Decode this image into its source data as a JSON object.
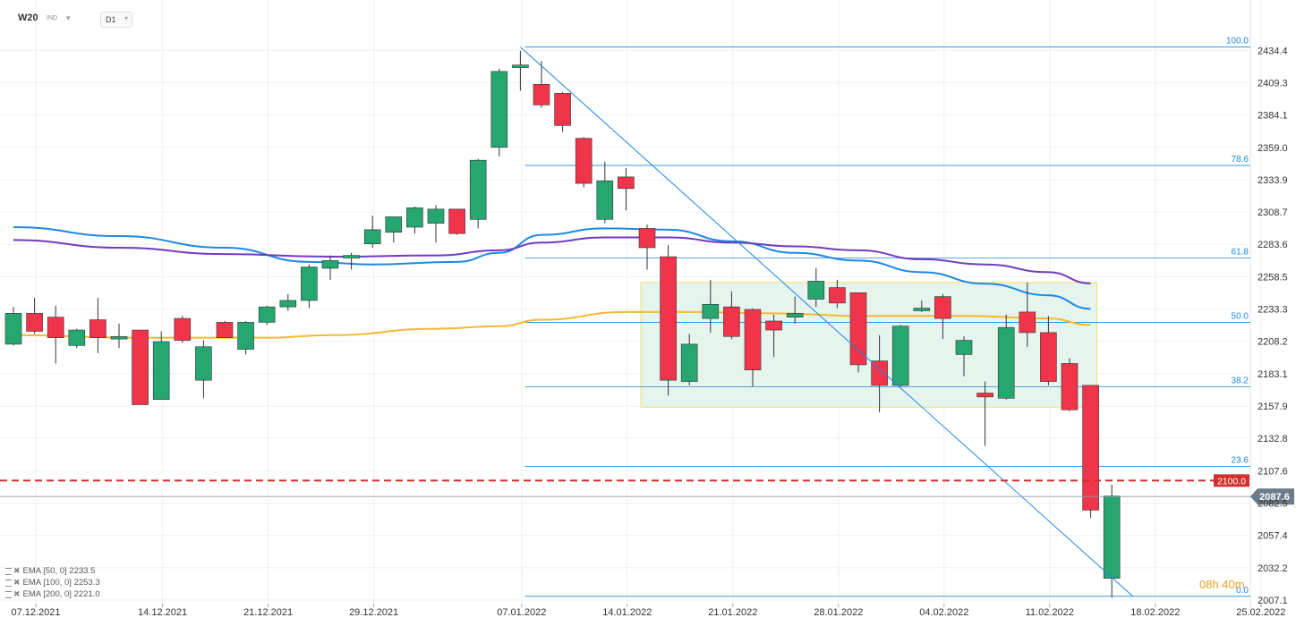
{
  "header": {
    "symbol": "W20",
    "indicator_toggle": "IND",
    "timeframe": "D1"
  },
  "legend": [
    "EMA [50,  0] 2233.5",
    "EMA [100,  0] 2253.3",
    "EMA [200,  0] 2221.0"
  ],
  "timer": "08h 40m",
  "colors": {
    "up": "#26a671",
    "down": "#f0344a",
    "ema50": "#1e88e5",
    "ema100": "#6f3cc0",
    "ema200": "#f5b930",
    "fib": "#1e88e5",
    "level": "#d32f2f",
    "zone_fill": "#e6f4ee",
    "zone_border": "#f0e060"
  },
  "chart_data": {
    "type": "candlestick",
    "title": "",
    "x_ticks": [
      "07.12.2021",
      "14.12.2021",
      "21.12.2021",
      "29.12.2021",
      "07.01.2022",
      "14.01.2022",
      "21.01.2022",
      "28.01.2022",
      "04.02.2022",
      "11.02.2022",
      "18.02.2022",
      "25.02.2022"
    ],
    "y_ticks": [
      2007.1,
      2032.2,
      2057.4,
      2082.5,
      2107.6,
      2132.8,
      2157.9,
      2183.1,
      2208.2,
      2233.3,
      2258.5,
      2283.6,
      2308.7,
      2333.9,
      2359.0,
      2384.1,
      2409.3,
      2434.4
    ],
    "ylim": [
      2003.0,
      2447.0
    ],
    "candles": [
      {
        "date": "06.12.2021",
        "o": 2206,
        "h": 2235,
        "l": 2205,
        "c": 2230
      },
      {
        "date": "07.12.2021",
        "o": 2230,
        "h": 2242,
        "l": 2214,
        "c": 2216
      },
      {
        "date": "08.12.2021",
        "o": 2227,
        "h": 2236,
        "l": 2191,
        "c": 2211
      },
      {
        "date": "09.12.2021",
        "o": 2205,
        "h": 2218,
        "l": 2203,
        "c": 2217
      },
      {
        "date": "10.12.2021",
        "o": 2225,
        "h": 2242,
        "l": 2199,
        "c": 2211
      },
      {
        "date": "13.12.2021",
        "o": 2210,
        "h": 2222,
        "l": 2203,
        "c": 2212
      },
      {
        "date": "14.12.2021",
        "o": 2217,
        "h": 2217,
        "l": 2159,
        "c": 2159
      },
      {
        "date": "15.12.2021",
        "o": 2163,
        "h": 2216,
        "l": 2163,
        "c": 2208
      },
      {
        "date": "16.12.2021",
        "o": 2226,
        "h": 2228,
        "l": 2207,
        "c": 2209
      },
      {
        "date": "17.12.2021",
        "o": 2178,
        "h": 2209,
        "l": 2164,
        "c": 2204
      },
      {
        "date": "20.12.2021",
        "o": 2223,
        "h": 2224,
        "l": 2211,
        "c": 2211
      },
      {
        "date": "21.12.2021",
        "o": 2202,
        "h": 2224,
        "l": 2198,
        "c": 2223
      },
      {
        "date": "22.12.2021",
        "o": 2223,
        "h": 2236,
        "l": 2221,
        "c": 2235
      },
      {
        "date": "23.12.2021",
        "o": 2235,
        "h": 2245,
        "l": 2232,
        "c": 2240
      },
      {
        "date": "24.12.2021",
        "o": 2240,
        "h": 2268,
        "l": 2234,
        "c": 2266
      },
      {
        "date": "27.12.2021",
        "o": 2265,
        "h": 2275,
        "l": 2256,
        "c": 2271
      },
      {
        "date": "28.12.2021",
        "o": 2273,
        "h": 2277,
        "l": 2264,
        "c": 2275
      },
      {
        "date": "30.12.2021",
        "o": 2284,
        "h": 2306,
        "l": 2281,
        "c": 2295
      },
      {
        "date": "31.12.2021",
        "o": 2293,
        "h": 2304,
        "l": 2285,
        "c": 2305
      },
      {
        "date": "03.01.2022",
        "o": 2297,
        "h": 2313,
        "l": 2292,
        "c": 2312
      },
      {
        "date": "04.01.2022",
        "o": 2300,
        "h": 2314,
        "l": 2285,
        "c": 2311
      },
      {
        "date": "05.01.2022",
        "o": 2311,
        "h": 2311,
        "l": 2291,
        "c": 2292
      },
      {
        "date": "06.01.2022",
        "o": 2303,
        "h": 2350,
        "l": 2296,
        "c": 2349
      },
      {
        "date": "07.01.2022",
        "o": 2359,
        "h": 2420,
        "l": 2352,
        "c": 2418
      },
      {
        "date": "10.01.2022",
        "o": 2421,
        "h": 2434,
        "l": 2403,
        "c": 2423
      },
      {
        "date": "11.01.2022",
        "o": 2408,
        "h": 2426,
        "l": 2390,
        "c": 2392
      },
      {
        "date": "12.01.2022",
        "o": 2401,
        "h": 2402,
        "l": 2371,
        "c": 2376
      },
      {
        "date": "13.01.2022",
        "o": 2366,
        "h": 2367,
        "l": 2328,
        "c": 2331
      },
      {
        "date": "14.01.2022",
        "o": 2303,
        "h": 2348,
        "l": 2300,
        "c": 2333
      },
      {
        "date": "17.01.2022",
        "o": 2336,
        "h": 2343,
        "l": 2310,
        "c": 2327
      },
      {
        "date": "18.01.2022",
        "o": 2296,
        "h": 2299,
        "l": 2264,
        "c": 2281
      },
      {
        "date": "19.01.2022",
        "o": 2274,
        "h": 2283,
        "l": 2166,
        "c": 2178
      },
      {
        "date": "20.01.2022",
        "o": 2177,
        "h": 2214,
        "l": 2174,
        "c": 2206
      },
      {
        "date": "21.01.2022",
        "o": 2226,
        "h": 2256,
        "l": 2215,
        "c": 2237
      },
      {
        "date": "24.01.2022",
        "o": 2235,
        "h": 2247,
        "l": 2210,
        "c": 2212
      },
      {
        "date": "25.01.2022",
        "o": 2233,
        "h": 2234,
        "l": 2173,
        "c": 2186
      },
      {
        "date": "26.01.2022",
        "o": 2224,
        "h": 2229,
        "l": 2196,
        "c": 2217
      },
      {
        "date": "27.01.2022",
        "o": 2227,
        "h": 2243,
        "l": 2222,
        "c": 2230
      },
      {
        "date": "28.01.2022",
        "o": 2241,
        "h": 2265,
        "l": 2235,
        "c": 2255
      },
      {
        "date": "31.01.2022",
        "o": 2250,
        "h": 2256,
        "l": 2234,
        "c": 2238
      },
      {
        "date": "01.02.2022",
        "o": 2246,
        "h": 2246,
        "l": 2184,
        "c": 2190
      },
      {
        "date": "02.02.2022",
        "o": 2193,
        "h": 2213,
        "l": 2153,
        "c": 2174
      },
      {
        "date": "03.02.2022",
        "o": 2174,
        "h": 2221,
        "l": 2173,
        "c": 2220
      },
      {
        "date": "04.02.2022",
        "o": 2232,
        "h": 2240,
        "l": 2231,
        "c": 2234
      },
      {
        "date": "07.02.2022",
        "o": 2243,
        "h": 2245,
        "l": 2210,
        "c": 2226
      },
      {
        "date": "08.02.2022",
        "o": 2198,
        "h": 2212,
        "l": 2181,
        "c": 2209
      },
      {
        "date": "09.02.2022",
        "o": 2168,
        "h": 2177,
        "l": 2127,
        "c": 2165
      },
      {
        "date": "10.02.2022",
        "o": 2164,
        "h": 2229,
        "l": 2163,
        "c": 2219
      },
      {
        "date": "11.02.2022",
        "o": 2231,
        "h": 2254,
        "l": 2204,
        "c": 2215
      },
      {
        "date": "14.02.2022",
        "o": 2215,
        "h": 2228,
        "l": 2174,
        "c": 2177
      },
      {
        "date": "15.02.2022",
        "o": 2191,
        "h": 2195,
        "l": 2154,
        "c": 2155
      },
      {
        "date": "16.02.2022",
        "o": 2174,
        "h": 2174,
        "l": 2071,
        "c": 2077
      },
      {
        "date": "17.02.2022",
        "o": 2024,
        "h": 2097,
        "l": 2009,
        "c": 2088
      }
    ],
    "ema50": [
      [
        0,
        2297
      ],
      [
        5,
        2290
      ],
      [
        10,
        2281
      ],
      [
        14,
        2270
      ],
      [
        17,
        2268
      ],
      [
        21,
        2270
      ],
      [
        23,
        2277
      ],
      [
        25,
        2291
      ],
      [
        28,
        2296
      ],
      [
        31,
        2295
      ],
      [
        34,
        2286
      ],
      [
        37,
        2277
      ],
      [
        40,
        2271
      ],
      [
        43,
        2262
      ],
      [
        46,
        2253
      ],
      [
        49,
        2244
      ],
      [
        51,
        2233.5
      ]
    ],
    "ema100": [
      [
        0,
        2287
      ],
      [
        5,
        2281
      ],
      [
        10,
        2276
      ],
      [
        15,
        2274
      ],
      [
        20,
        2275
      ],
      [
        23,
        2279
      ],
      [
        25,
        2285
      ],
      [
        28,
        2289
      ],
      [
        31,
        2289
      ],
      [
        34,
        2285
      ],
      [
        37,
        2282
      ],
      [
        40,
        2279
      ],
      [
        43,
        2272
      ],
      [
        46,
        2268
      ],
      [
        49,
        2262
      ],
      [
        51,
        2253.3
      ]
    ],
    "ema200": [
      [
        0,
        2213
      ],
      [
        6,
        2211
      ],
      [
        12,
        2211
      ],
      [
        15,
        2213
      ],
      [
        20,
        2218
      ],
      [
        23,
        2220
      ],
      [
        25,
        2225
      ],
      [
        29,
        2231
      ],
      [
        32,
        2231
      ],
      [
        36,
        2230
      ],
      [
        40,
        2228
      ],
      [
        45,
        2228
      ],
      [
        49,
        2226
      ],
      [
        51,
        2221.0
      ]
    ],
    "fibonacci": {
      "from_index": 24,
      "to_index": 53,
      "high": 2437,
      "low": 2010,
      "levels": [
        {
          "label": "100.0",
          "value": 2437
        },
        {
          "label": "78.6",
          "value": 2345
        },
        {
          "label": "61.8",
          "value": 2273
        },
        {
          "label": "50.0",
          "value": 2223
        },
        {
          "label": "38.2",
          "value": 2173
        },
        {
          "label": "23.6",
          "value": 2111
        },
        {
          "label": "0.0",
          "value": 2010
        }
      ]
    },
    "trendline": {
      "from_index": 24,
      "from_value": 2437,
      "to_index": 53,
      "to_value": 2010
    },
    "zone": {
      "from_index": 30,
      "to_index": 51,
      "top": 2254,
      "bottom": 2157
    },
    "levels": [
      {
        "label": "2100.0",
        "value": 2100.0,
        "style": "dashed"
      },
      {
        "label": "2087.6",
        "value": 2087.6,
        "style": "current"
      }
    ]
  }
}
